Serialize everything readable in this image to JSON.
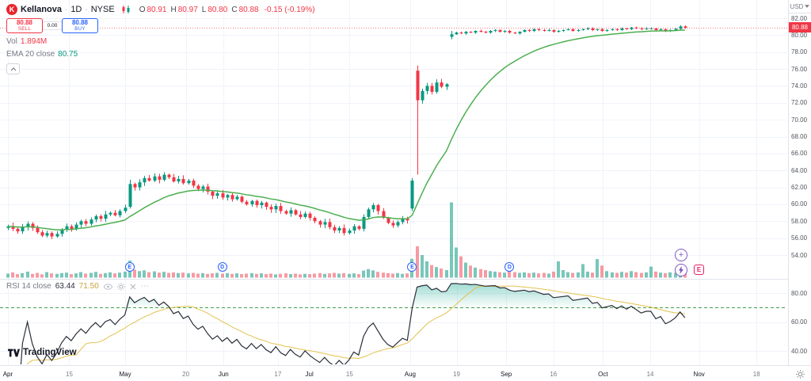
{
  "header": {
    "logo_letter": "K",
    "symbol": "Kellanova",
    "sep": "·",
    "interval": "1D",
    "exchange": "NYSE",
    "ohlc": {
      "items": [
        {
          "k": "O",
          "v": "80.91"
        },
        {
          "k": "H",
          "v": "80.97"
        },
        {
          "k": "L",
          "v": "80.80"
        },
        {
          "k": "C",
          "v": "80.88"
        }
      ],
      "change": "-0.15 (-0.19%)"
    },
    "sell": {
      "price": "80.88",
      "label": "SELL"
    },
    "spread": "0.00",
    "buy": {
      "price": "80.88",
      "label": "BUY"
    },
    "vol": {
      "label": "Vol",
      "value": "1.894M"
    },
    "ema": {
      "label": "EMA 20 close",
      "value": "80.75"
    }
  },
  "rsi_legend": {
    "label": "RSI 14 close",
    "value": "63.44",
    "ma_value": "71.50"
  },
  "icons": {
    "more": "⋯"
  },
  "floating": {
    "plus_label": "+",
    "earnings_label": "E"
  },
  "brand": {
    "name": "TradingView"
  },
  "price_axis": {
    "currency": "USD",
    "last_price_label": "80.88",
    "ticks": [
      {
        "label": "82.00",
        "value": 82
      },
      {
        "label": "80.00",
        "value": 80
      },
      {
        "label": "78.00",
        "value": 78
      },
      {
        "label": "76.00",
        "value": 76
      },
      {
        "label": "74.00",
        "value": 74
      },
      {
        "label": "72.00",
        "value": 72
      },
      {
        "label": "70.00",
        "value": 70
      },
      {
        "label": "68.00",
        "value": 68
      },
      {
        "label": "66.00",
        "value": 66
      },
      {
        "label": "64.00",
        "value": 64
      },
      {
        "label": "62.00",
        "value": 62
      },
      {
        "label": "60.00",
        "value": 60
      },
      {
        "label": "58.00",
        "value": 58
      },
      {
        "label": "56.00",
        "value": 56
      },
      {
        "label": "54.00",
        "value": 54
      }
    ]
  },
  "rsi_axis": {
    "ticks": [
      {
        "label": "80.00",
        "value": 80
      },
      {
        "label": "60.00",
        "value": 60
      },
      {
        "label": "40.00",
        "value": 40
      }
    ]
  },
  "time_axis": {
    "labels": [
      {
        "text": "Apr",
        "pos": 0.01,
        "major": true
      },
      {
        "text": "15",
        "pos": 0.088,
        "major": false
      },
      {
        "text": "May",
        "pos": 0.159,
        "major": true
      },
      {
        "text": "20",
        "pos": 0.236,
        "major": false
      },
      {
        "text": "Jun",
        "pos": 0.284,
        "major": true
      },
      {
        "text": "17",
        "pos": 0.353,
        "major": false
      },
      {
        "text": "Jul",
        "pos": 0.393,
        "major": true
      },
      {
        "text": "15",
        "pos": 0.444,
        "major": false
      },
      {
        "text": "Aug",
        "pos": 0.521,
        "major": true
      },
      {
        "text": "19",
        "pos": 0.58,
        "major": false
      },
      {
        "text": "Sep",
        "pos": 0.643,
        "major": true
      },
      {
        "text": "16",
        "pos": 0.703,
        "major": false
      },
      {
        "text": "Oct",
        "pos": 0.766,
        "major": true
      },
      {
        "text": "14",
        "pos": 0.826,
        "major": false
      },
      {
        "text": "Nov",
        "pos": 0.888,
        "major": true
      },
      {
        "text": "18",
        "pos": 0.961,
        "major": false
      }
    ]
  },
  "events": [
    {
      "label": "E",
      "index": 25
    },
    {
      "label": "D",
      "index": 44
    },
    {
      "label": "E",
      "index": 83
    },
    {
      "label": "D",
      "index": 103
    }
  ],
  "chart_data": {
    "type": "candlestick",
    "title": "Kellanova (K) 1D NYSE — price with EMA 20, volume, and RSI 14",
    "x_range": [
      "Apr",
      "Nov"
    ],
    "price_axis_range": [
      54,
      82
    ],
    "rsi_axis_ticks": [
      80,
      60,
      40
    ],
    "ema_period": 20,
    "rsi_period": 14,
    "rsi_bands": [
      70,
      30
    ],
    "last_price": 80.88,
    "closes": [
      57.4,
      57.1,
      56.8,
      57.3,
      57.7,
      57.2,
      56.7,
      56.3,
      56.6,
      56.2,
      56.5,
      57.0,
      57.4,
      57.1,
      57.6,
      58.0,
      57.7,
      58.2,
      58.6,
      58.3,
      58.8,
      59.0,
      58.7,
      59.2,
      59.6,
      62.4,
      62.0,
      62.6,
      63.1,
      62.8,
      63.3,
      62.9,
      63.5,
      63.2,
      62.7,
      63.0,
      62.5,
      62.8,
      62.2,
      61.8,
      62.1,
      61.5,
      61.0,
      61.3,
      60.8,
      61.1,
      60.6,
      60.9,
      60.3,
      60.0,
      60.4,
      59.9,
      60.2,
      59.7,
      59.4,
      59.8,
      59.2,
      58.9,
      59.3,
      58.8,
      58.5,
      58.9,
      58.4,
      58.0,
      57.6,
      57.9,
      57.3,
      56.9,
      57.2,
      56.6,
      56.9,
      57.4,
      57.1,
      58.5,
      59.4,
      59.9,
      59.2,
      58.4,
      57.8,
      57.5,
      57.9,
      58.3,
      58.1,
      62.8,
      72.3,
      73.4,
      74.0,
      73.3,
      74.4,
      73.9,
      74.2,
      80.1,
      80.3,
      80.2,
      80.4,
      80.3,
      80.5,
      80.4,
      80.3,
      80.5,
      80.6,
      80.4,
      80.5,
      80.3,
      80.2,
      80.4,
      80.6,
      80.5,
      80.7,
      80.6,
      80.5,
      80.6,
      80.4,
      80.5,
      80.6,
      80.7,
      80.5,
      80.6,
      80.7,
      80.8,
      80.6,
      80.7,
      80.5,
      80.6,
      80.7,
      80.6,
      80.8,
      80.7,
      80.9,
      80.8,
      80.7,
      80.8,
      80.8,
      80.6,
      80.7,
      80.5,
      80.6,
      80.75,
      81.03,
      80.88
    ],
    "volumes": [
      1.6,
      2.1,
      1.4,
      1.8,
      2.4,
      1.5,
      1.9,
      1.3,
      2.2,
      1.7,
      1.5,
      1.8,
      2.0,
      1.4,
      1.7,
      2.2,
      1.6,
      1.9,
      2.3,
      1.5,
      1.8,
      2.1,
      1.7,
      2.0,
      2.4,
      6.8,
      3.2,
      2.6,
      2.9,
      2.2,
      2.5,
      2.0,
      2.3,
      1.9,
      2.1,
      1.8,
      2.0,
      1.7,
      1.9,
      1.6,
      1.8,
      1.5,
      1.7,
      1.9,
      1.6,
      1.8,
      1.5,
      1.7,
      1.4,
      1.6,
      1.8,
      1.5,
      1.7,
      1.4,
      1.6,
      1.3,
      1.5,
      1.7,
      1.4,
      1.6,
      1.3,
      1.5,
      1.4,
      1.6,
      1.8,
      1.5,
      1.7,
      1.9,
      1.6,
      1.8,
      1.5,
      1.7,
      1.4,
      2.8,
      3.4,
      2.9,
      2.3,
      2.0,
      1.8,
      1.6,
      1.8,
      1.5,
      1.7,
      7.5,
      12.5,
      9.0,
      6.5,
      5.0,
      4.2,
      3.6,
      3.0,
      30.0,
      12.0,
      8.5,
      6.0,
      4.8,
      4.0,
      3.4,
      3.0,
      2.6,
      2.4,
      2.2,
      2.0,
      3.8,
      2.2,
      1.9,
      2.1,
      1.8,
      2.0,
      1.7,
      1.9,
      1.6,
      2.4,
      6.5,
      3.0,
      2.2,
      1.9,
      2.1,
      5.4,
      2.4,
      2.0,
      7.4,
      4.8,
      2.6,
      2.1,
      1.9,
      2.3,
      2.0,
      2.6,
      2.2,
      1.9,
      2.1,
      4.4,
      2.4,
      2.0,
      1.8,
      2.1,
      1.9,
      2.3,
      1.894
    ],
    "special_candles": {
      "25": [
        59.7,
        62.9,
        59.5,
        62.4
      ],
      "83": [
        59.5,
        63.1,
        59.2,
        62.8
      ],
      "84": [
        75.8,
        76.4,
        63.5,
        72.3
      ],
      "91": [
        79.8,
        80.5,
        79.5,
        80.1
      ]
    },
    "colors": {
      "up": "#089981",
      "down": "#f23645",
      "vol_up": "rgba(8,153,129,0.55)",
      "vol_down": "rgba(242,54,69,0.5)",
      "ema": "#4caf50",
      "rsi": "#2a2e39",
      "rsi_ma": "#e3c24d",
      "rsi_fill": "rgba(34,171,148,0.45)",
      "band_upper": "#43a047",
      "band_lower": "#f23645",
      "grid": "#f0f3fa",
      "separator": "#e0e3eb",
      "last_price_color": "#f23645"
    }
  }
}
